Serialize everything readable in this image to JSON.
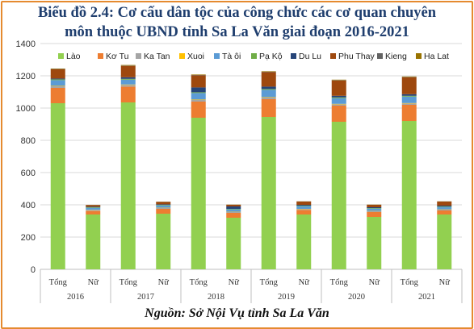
{
  "title_line1": "Biểu đồ 2.4: Cơ cấu dân tộc của công chức các cơ quan chuyên",
  "title_line2": "môn thuộc UBND tỉnh Sa La Văn giai đoạn 2016-2021",
  "source": "Nguồn: Sở Nội Vụ tỉnh Sa La Văn",
  "chart_data": {
    "type": "bar",
    "stacked": true,
    "ylim": [
      0,
      1400
    ],
    "yticks": [
      0,
      200,
      400,
      600,
      800,
      1000,
      1200,
      1400
    ],
    "grid": true,
    "legend_position": "top",
    "groups": [
      "2016",
      "2017",
      "2018",
      "2019",
      "2020",
      "2021"
    ],
    "categories": [
      "Tổng",
      "Nữ",
      "Tổng",
      "Nữ",
      "Tổng",
      "Nữ",
      "Tổng",
      "Nữ",
      "Tổng",
      "Nữ",
      "Tổng",
      "Nữ"
    ],
    "series": [
      {
        "name": "Lào",
        "color": "#92d050",
        "values": [
          1030,
          340,
          1035,
          345,
          940,
          320,
          945,
          340,
          915,
          325,
          920,
          340
        ]
      },
      {
        "name": "Kơ Tu",
        "color": "#ed7d31",
        "values": [
          95,
          22,
          98,
          30,
          100,
          30,
          110,
          28,
          100,
          30,
          100,
          25
        ]
      },
      {
        "name": "Ka Tan",
        "color": "#a5a5a5",
        "values": [
          10,
          5,
          10,
          5,
          10,
          5,
          10,
          5,
          8,
          5,
          8,
          5
        ]
      },
      {
        "name": "Xuoi",
        "color": "#ffc000",
        "values": [
          3,
          2,
          3,
          2,
          3,
          2,
          3,
          2,
          3,
          2,
          3,
          2
        ]
      },
      {
        "name": "Tà ôi",
        "color": "#5b9bd5",
        "values": [
          35,
          13,
          30,
          15,
          40,
          15,
          45,
          17,
          35,
          15,
          40,
          15
        ]
      },
      {
        "name": "Pạ Kộ",
        "color": "#70ad47",
        "values": [
          5,
          3,
          5,
          3,
          5,
          3,
          5,
          3,
          5,
          3,
          5,
          3
        ]
      },
      {
        "name": "Du Lu",
        "color": "#264478",
        "values": [
          5,
          3,
          10,
          3,
          30,
          15,
          15,
          5,
          10,
          5,
          10,
          5
        ]
      },
      {
        "name": "Phu Thay",
        "color": "#9e480e",
        "values": [
          57,
          10,
          70,
          15,
          75,
          10,
          90,
          20,
          95,
          15,
          105,
          25
        ]
      },
      {
        "name": "Kieng",
        "color": "#636363",
        "values": [
          2,
          1,
          2,
          1,
          2,
          1,
          2,
          1,
          2,
          1,
          2,
          1
        ]
      },
      {
        "name": "Ha Lat",
        "color": "#997300",
        "values": [
          3,
          1,
          4,
          1,
          3,
          1,
          3,
          1,
          3,
          1,
          3,
          1
        ]
      }
    ]
  }
}
